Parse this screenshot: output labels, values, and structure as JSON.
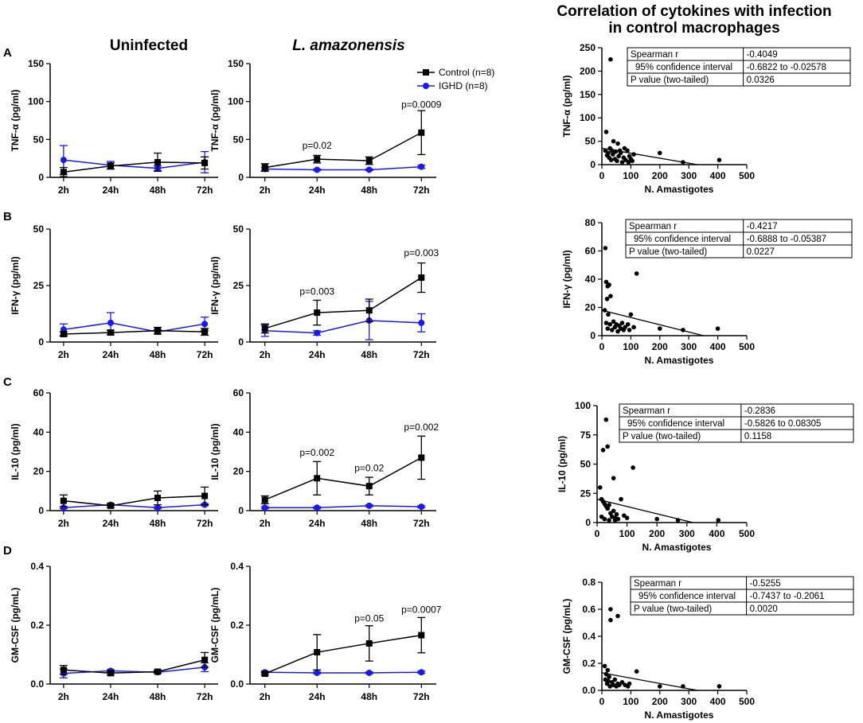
{
  "figure": {
    "col_headers": [
      "Uninfected",
      "L. amazonensis"
    ],
    "corr_title": [
      "Correlation of cytokines with infection",
      "in control macrophages"
    ],
    "panel_labels": [
      "A",
      "B",
      "C",
      "D"
    ],
    "legend": [
      {
        "name": "Control (n=8)",
        "color": "#000000",
        "marker": "square"
      },
      {
        "name": "IGHD (n=8)",
        "color": "#1a1aee",
        "marker": "circle"
      }
    ]
  },
  "chart_data": [
    {
      "id": "A-uninfected",
      "type": "line",
      "ylabel": "TNF-α (pg/ml)",
      "categories": [
        "2h",
        "24h",
        "48h",
        "72h"
      ],
      "ylim": [
        0,
        150
      ],
      "yticks": [
        0,
        50,
        100,
        150
      ],
      "ytick_labels": [
        "0",
        "50",
        "100",
        "150"
      ],
      "series": [
        {
          "name": "Control (n=8)",
          "values": [
            7,
            15,
            20,
            19
          ],
          "err": [
            6,
            4,
            12,
            8
          ]
        },
        {
          "name": "IGHD (n=8)",
          "values": [
            23,
            16,
            12,
            20
          ],
          "err": [
            19,
            5,
            3,
            14
          ]
        }
      ],
      "annotations": []
    },
    {
      "id": "A-infected",
      "type": "line",
      "ylabel": "TNF-α (pg/ml)",
      "categories": [
        "2h",
        "24h",
        "48h",
        "72h"
      ],
      "ylim": [
        0,
        150
      ],
      "yticks": [
        0,
        50,
        100,
        150
      ],
      "ytick_labels": [
        "0",
        "50",
        "100",
        "150"
      ],
      "series": [
        {
          "name": "Control (n=8)",
          "values": [
            13,
            24,
            22,
            59
          ],
          "err": [
            5,
            5,
            5,
            29
          ]
        },
        {
          "name": "IGHD (n=8)",
          "values": [
            11,
            10,
            10,
            14
          ],
          "err": [
            2,
            1,
            1,
            2
          ]
        }
      ],
      "annotations": [
        {
          "cat": 1,
          "text": "p=0.02",
          "value": 38
        },
        {
          "cat": 3,
          "text": "p=0.0009",
          "value": 92
        }
      ]
    },
    {
      "id": "A-corr",
      "type": "scatter",
      "ylabel": "TNF-α (pg/ml)",
      "xlabel": "N. Amastigotes",
      "xlim": [
        0,
        500
      ],
      "xticks": [
        0,
        100,
        200,
        300,
        400,
        500
      ],
      "ylim": [
        0,
        250
      ],
      "yticks": [
        0,
        50,
        100,
        150,
        200,
        250
      ],
      "ytick_labels": [
        "0",
        "50",
        "100",
        "150",
        "200",
        "250"
      ],
      "points": [
        [
          15,
          70
        ],
        [
          30,
          225
        ],
        [
          12,
          30
        ],
        [
          18,
          20
        ],
        [
          22,
          25
        ],
        [
          25,
          15
        ],
        [
          28,
          35
        ],
        [
          32,
          10
        ],
        [
          35,
          30
        ],
        [
          38,
          22
        ],
        [
          40,
          50
        ],
        [
          45,
          12
        ],
        [
          48,
          28
        ],
        [
          52,
          8
        ],
        [
          55,
          45
        ],
        [
          58,
          18
        ],
        [
          62,
          30
        ],
        [
          65,
          25
        ],
        [
          70,
          5
        ],
        [
          75,
          15
        ],
        [
          78,
          35
        ],
        [
          82,
          10
        ],
        [
          88,
          30
        ],
        [
          92,
          5
        ],
        [
          95,
          18
        ],
        [
          100,
          12
        ],
        [
          105,
          8
        ],
        [
          110,
          22
        ],
        [
          200,
          25
        ],
        [
          280,
          5
        ],
        [
          405,
          10
        ]
      ],
      "fit": [
        [
          0,
          35
        ],
        [
          330,
          0
        ]
      ],
      "stats": [
        [
          "Spearman r",
          "-0.4049"
        ],
        [
          "95% confidence interval",
          "-0.6822 to -0.02578"
        ],
        [
          "P value (two-tailed)",
          "0.0326"
        ]
      ]
    },
    {
      "id": "B-uninfected",
      "type": "line",
      "ylabel": "IFN-γ (pg/ml)",
      "categories": [
        "2h",
        "24h",
        "48h",
        "72h"
      ],
      "ylim": [
        0,
        50
      ],
      "yticks": [
        0,
        25,
        50
      ],
      "ytick_labels": [
        "0",
        "25",
        "50"
      ],
      "series": [
        {
          "name": "Control (n=8)",
          "values": [
            3.5,
            4.2,
            5,
            4.5
          ],
          "err": [
            1,
            1,
            1.5,
            1.5
          ]
        },
        {
          "name": "IGHD (n=8)",
          "values": [
            5.5,
            8.5,
            4.5,
            8
          ],
          "err": [
            2.5,
            4.5,
            1,
            3
          ]
        }
      ],
      "annotations": []
    },
    {
      "id": "B-infected",
      "type": "line",
      "ylabel": "IFN-γ (pg/ml)",
      "categories": [
        "2h",
        "24h",
        "48h",
        "72h"
      ],
      "ylim": [
        0,
        50
      ],
      "yticks": [
        0,
        25,
        50
      ],
      "ytick_labels": [
        "0",
        "25",
        "50"
      ],
      "series": [
        {
          "name": "Control (n=8)",
          "values": [
            6,
            13,
            14,
            28.5
          ],
          "err": [
            2,
            5.5,
            5,
            6.5
          ]
        },
        {
          "name": "IGHD (n=8)",
          "values": [
            5,
            4,
            9.5,
            8.5
          ],
          "err": [
            2.5,
            1,
            8.5,
            4
          ]
        }
      ],
      "annotations": [
        {
          "cat": 1,
          "text": "p=0.003",
          "value": 21
        },
        {
          "cat": 3,
          "text": "p=0.003",
          "value": 38
        }
      ]
    },
    {
      "id": "B-corr",
      "type": "scatter",
      "ylabel": "IFN-γ (pg/ml)",
      "xlabel": "N. Amastigotes",
      "xlim": [
        0,
        500
      ],
      "xticks": [
        0,
        100,
        200,
        300,
        400,
        500
      ],
      "ylim": [
        0,
        80
      ],
      "yticks": [
        0,
        20,
        40,
        60,
        80
      ],
      "ytick_labels": [
        "0",
        "20",
        "40",
        "60",
        "80"
      ],
      "points": [
        [
          12,
          62
        ],
        [
          15,
          38
        ],
        [
          20,
          35
        ],
        [
          25,
          36
        ],
        [
          18,
          26
        ],
        [
          30,
          28
        ],
        [
          10,
          18
        ],
        [
          22,
          15
        ],
        [
          15,
          9
        ],
        [
          20,
          5
        ],
        [
          28,
          8
        ],
        [
          35,
          4
        ],
        [
          40,
          10
        ],
        [
          45,
          6
        ],
        [
          50,
          8
        ],
        [
          55,
          3
        ],
        [
          60,
          7
        ],
        [
          65,
          5
        ],
        [
          70,
          9
        ],
        [
          75,
          4
        ],
        [
          80,
          6
        ],
        [
          90,
          8
        ],
        [
          95,
          4
        ],
        [
          100,
          15
        ],
        [
          110,
          6
        ],
        [
          120,
          44
        ],
        [
          200,
          5
        ],
        [
          280,
          4
        ],
        [
          400,
          5
        ]
      ],
      "fit": [
        [
          0,
          18
        ],
        [
          350,
          0
        ]
      ],
      "stats": [
        [
          "Spearman r",
          "-0.4217"
        ],
        [
          "95% confidence interval",
          "-0.6888 to -0.05387"
        ],
        [
          "P value (two-tailed)",
          "0.0227"
        ]
      ]
    },
    {
      "id": "C-uninfected",
      "type": "line",
      "ylabel": "IL-10 (pg/ml)",
      "categories": [
        "2h",
        "24h",
        "48h",
        "72h"
      ],
      "ylim": [
        0,
        60
      ],
      "yticks": [
        0,
        20,
        40,
        60
      ],
      "ytick_labels": [
        "0",
        "20",
        "40",
        "60"
      ],
      "series": [
        {
          "name": "Control (n=8)",
          "values": [
            5,
            2.5,
            6.5,
            7.5
          ],
          "err": [
            3,
            1,
            3.5,
            4.5
          ]
        },
        {
          "name": "IGHD (n=8)",
          "values": [
            1.5,
            3,
            1.5,
            3
          ],
          "err": [
            0.5,
            0.5,
            0.5,
            0.5
          ]
        }
      ],
      "annotations": []
    },
    {
      "id": "C-infected",
      "type": "line",
      "ylabel": "IL-10 (pg/ml)",
      "categories": [
        "2h",
        "24h",
        "48h",
        "72h"
      ],
      "ylim": [
        0,
        60
      ],
      "yticks": [
        0,
        20,
        40,
        60
      ],
      "ytick_labels": [
        "0",
        "20",
        "40",
        "60"
      ],
      "series": [
        {
          "name": "Control (n=8)",
          "values": [
            5.5,
            16.5,
            12.5,
            27
          ],
          "err": [
            2,
            8.5,
            4.5,
            11
          ]
        },
        {
          "name": "IGHD (n=8)",
          "values": [
            1.5,
            1.5,
            2.5,
            2
          ],
          "err": [
            0.5,
            0.5,
            0.5,
            0.5
          ]
        }
      ],
      "annotations": [
        {
          "cat": 1,
          "text": "p=0.002",
          "value": 28
        },
        {
          "cat": 2,
          "text": "p=0.02",
          "value": 20
        },
        {
          "cat": 3,
          "text": "p=0.002",
          "value": 41
        }
      ]
    },
    {
      "id": "C-corr",
      "type": "scatter",
      "ylabel": "IL-10 (pg/ml)",
      "xlabel": "N. Amastigotes",
      "xlim": [
        0,
        500
      ],
      "xticks": [
        0,
        100,
        200,
        300,
        400,
        500
      ],
      "ylim": [
        0,
        100
      ],
      "yticks": [
        0,
        25,
        50,
        75,
        100
      ],
      "ytick_labels": [
        "0",
        "25",
        "50",
        "75",
        "100"
      ],
      "points": [
        [
          30,
          88
        ],
        [
          20,
          62
        ],
        [
          35,
          65
        ],
        [
          55,
          38
        ],
        [
          120,
          47
        ],
        [
          10,
          30
        ],
        [
          15,
          20
        ],
        [
          20,
          18
        ],
        [
          25,
          16
        ],
        [
          30,
          14
        ],
        [
          35,
          12
        ],
        [
          40,
          15
        ],
        [
          45,
          8
        ],
        [
          50,
          5
        ],
        [
          55,
          10
        ],
        [
          60,
          4
        ],
        [
          65,
          7
        ],
        [
          70,
          3
        ],
        [
          80,
          20
        ],
        [
          90,
          6
        ],
        [
          100,
          4
        ],
        [
          15,
          5
        ],
        [
          25,
          3
        ],
        [
          40,
          2
        ],
        [
          60,
          2
        ],
        [
          200,
          3
        ],
        [
          270,
          2
        ],
        [
          405,
          2
        ]
      ],
      "fit": [
        [
          0,
          20
        ],
        [
          320,
          0
        ]
      ],
      "stats": [
        [
          "Spearman r",
          "-0.2836"
        ],
        [
          "95% confidence interval",
          "-0.5826 to 0.08305"
        ],
        [
          "P value (two-tailed)",
          "0.1158"
        ]
      ]
    },
    {
      "id": "D-uninfected",
      "type": "line",
      "ylabel": "GM-CSF (pg/mL)",
      "categories": [
        "2h",
        "24h",
        "48h",
        "72h"
      ],
      "ylim": [
        0,
        0.4
      ],
      "yticks": [
        0,
        0.2,
        0.4
      ],
      "ytick_labels": [
        "0.0",
        "0.2",
        "0.4"
      ],
      "series": [
        {
          "name": "Control (n=8)",
          "values": [
            0.048,
            0.037,
            0.042,
            0.082
          ],
          "err": [
            0.015,
            0.006,
            0.005,
            0.025
          ]
        },
        {
          "name": "IGHD (n=8)",
          "values": [
            0.036,
            0.045,
            0.04,
            0.057
          ],
          "err": [
            0.015,
            0.004,
            0.004,
            0.015
          ]
        }
      ],
      "annotations": []
    },
    {
      "id": "D-infected",
      "type": "line",
      "ylabel": "GM-CSF (pg/mL)",
      "categories": [
        "2h",
        "24h",
        "48h",
        "72h"
      ],
      "ylim": [
        0,
        0.4
      ],
      "yticks": [
        0,
        0.2,
        0.4
      ],
      "ytick_labels": [
        "0.0",
        "0.2",
        "0.4"
      ],
      "series": [
        {
          "name": "Control (n=8)",
          "values": [
            0.035,
            0.108,
            0.138,
            0.166
          ],
          "err": [
            0.005,
            0.06,
            0.06,
            0.06
          ]
        },
        {
          "name": "IGHD (n=8)",
          "values": [
            0.04,
            0.038,
            0.038,
            0.04
          ],
          "err": [
            0.004,
            0.003,
            0.003,
            0.004
          ]
        }
      ],
      "annotations": [
        {
          "cat": 2,
          "text": "p=0.05",
          "value": 0.212
        },
        {
          "cat": 3,
          "text": "p=0.0007",
          "value": 0.242
        }
      ]
    },
    {
      "id": "D-corr",
      "type": "scatter",
      "ylabel": "GM-CSF (pg/mL)",
      "xlabel": "N. Amastigotes",
      "xlim": [
        0,
        500
      ],
      "xticks": [
        0,
        100,
        200,
        300,
        400,
        500
      ],
      "ylim": [
        0,
        0.8
      ],
      "yticks": [
        0,
        0.2,
        0.4,
        0.6,
        0.8
      ],
      "ytick_labels": [
        "0.0",
        "0.2",
        "0.4",
        "0.6",
        "0.8"
      ],
      "points": [
        [
          30,
          0.6
        ],
        [
          55,
          0.55
        ],
        [
          30,
          0.52
        ],
        [
          10,
          0.18
        ],
        [
          15,
          0.12
        ],
        [
          20,
          0.15
        ],
        [
          25,
          0.1
        ],
        [
          12,
          0.08
        ],
        [
          18,
          0.05
        ],
        [
          22,
          0.07
        ],
        [
          28,
          0.03
        ],
        [
          35,
          0.06
        ],
        [
          40,
          0.04
        ],
        [
          45,
          0.08
        ],
        [
          50,
          0.03
        ],
        [
          55,
          0.05
        ],
        [
          60,
          0.04
        ],
        [
          70,
          0.06
        ],
        [
          80,
          0.04
        ],
        [
          90,
          0.03
        ],
        [
          95,
          0.05
        ],
        [
          120,
          0.14
        ],
        [
          200,
          0.03
        ],
        [
          280,
          0.03
        ],
        [
          405,
          0.03
        ]
      ],
      "fit": [
        [
          0,
          0.13
        ],
        [
          330,
          0
        ]
      ],
      "stats": [
        [
          "Spearman r",
          "-0.5255"
        ],
        [
          "95% confidence interval",
          "-0.7437 to -0.2061"
        ],
        [
          "P value (two-tailed)",
          "0.0020"
        ]
      ]
    }
  ]
}
